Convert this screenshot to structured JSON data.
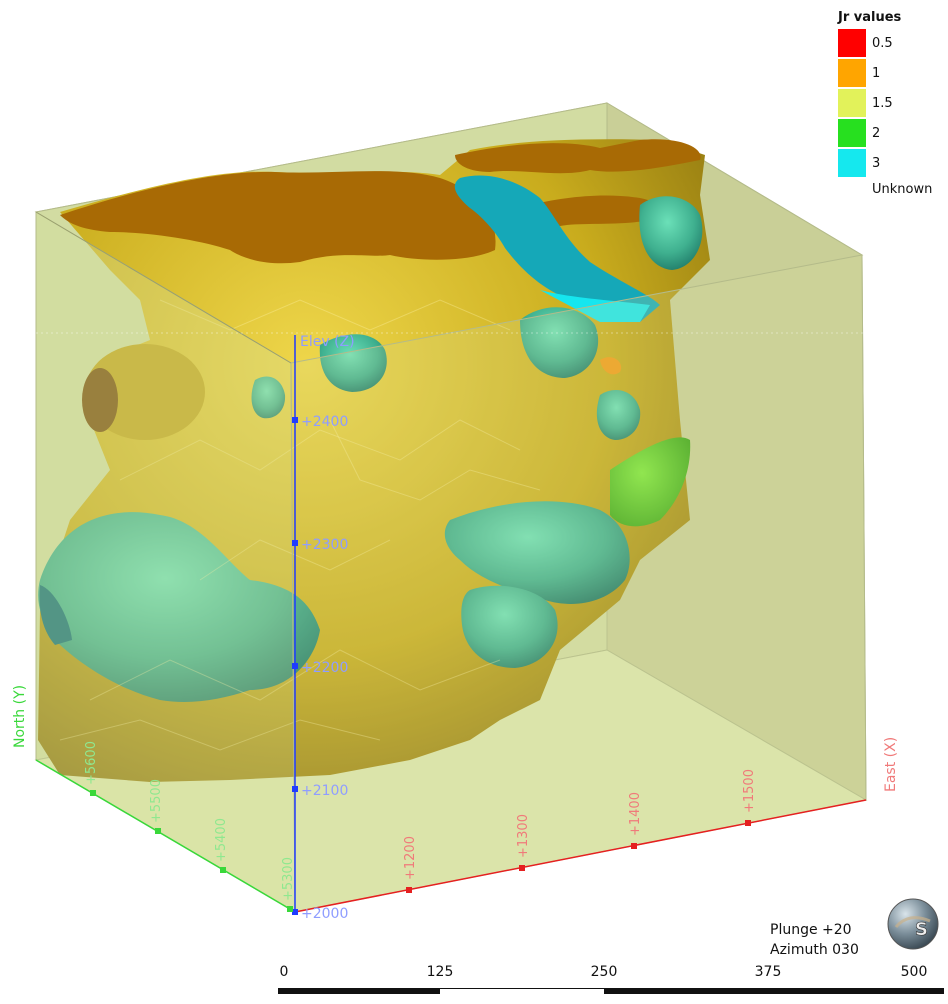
{
  "legend": {
    "title": "Jr values",
    "items": [
      {
        "label": "0.5",
        "color": "#ff0000"
      },
      {
        "label": "1",
        "color": "#ffa500"
      },
      {
        "label": "1.5",
        "color": "#e2f25a"
      },
      {
        "label": "2",
        "color": "#27e01f"
      },
      {
        "label": "3",
        "color": "#15e8ee"
      }
    ],
    "unknown_label": "Unknown"
  },
  "axes": {
    "elevation": {
      "title": "Elev (Z)",
      "ticks": [
        "+2000",
        "+2100",
        "+2200",
        "+2300",
        "+2400"
      ],
      "color": "#1f3bff"
    },
    "north": {
      "title": "North (Y)",
      "ticks": [
        "+5300",
        "+5400",
        "+5500",
        "+5600"
      ],
      "color": "#39d83a"
    },
    "east": {
      "title": "East (X)",
      "ticks": [
        "+1200",
        "+1300",
        "+1400",
        "+1500"
      ],
      "color": "#e52020"
    }
  },
  "view": {
    "plunge": "Plunge +20",
    "azimuth": "Azimuth 030"
  },
  "scalebar": {
    "labels": [
      "0",
      "125",
      "250",
      "375",
      "500"
    ]
  },
  "colors": {
    "box_fill": "#d5df9e",
    "gold_surface": "#c9ac1d",
    "top_surface": "#a86a05",
    "teal_surface": "#3fb08f"
  }
}
